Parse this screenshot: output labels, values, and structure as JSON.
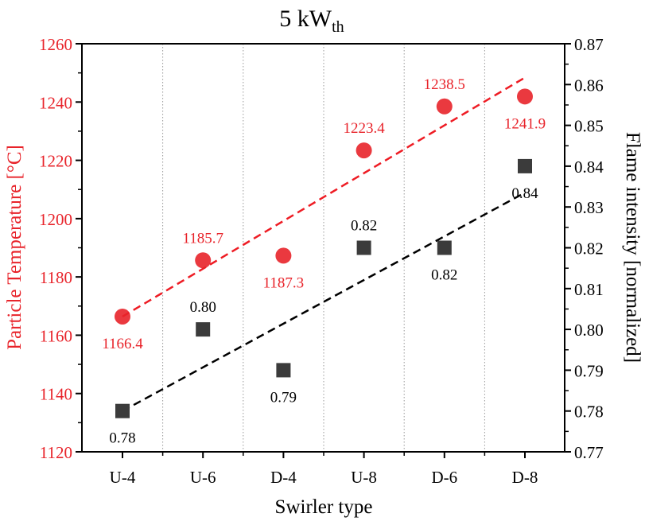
{
  "chart_data": {
    "type": "scatter",
    "title": "5 kW",
    "title_subscript": "th",
    "xlabel": "Swirler type",
    "ylabel_left": "Particle Temperature [°C]",
    "ylabel_right": "Flame intensity [normalized]",
    "categories": [
      "U-4",
      "U-6",
      "D-4",
      "U-8",
      "D-6",
      "D-8"
    ],
    "ylim_left": [
      1120,
      1260
    ],
    "yticks_left": [
      "1120",
      "1140",
      "1160",
      "1180",
      "1200",
      "1220",
      "1240",
      "1260"
    ],
    "ylim_right": [
      0.77,
      0.87
    ],
    "yticks_right": [
      "0.77",
      "0.78",
      "0.79",
      "0.80",
      "0.81",
      "0.82",
      "0.83",
      "0.84",
      "0.85",
      "0.86",
      "0.87"
    ],
    "grid": "vertical-dotted",
    "series": [
      {
        "name": "Particle Temperature",
        "axis": "left",
        "marker": "circle",
        "color": "#e8232a",
        "values": [
          1166.4,
          1185.7,
          1187.3,
          1223.4,
          1238.5,
          1241.9
        ],
        "labels": [
          "1166.4",
          "1185.7",
          "1187.3",
          "1223.4",
          "1238.5",
          "1241.9"
        ],
        "label_side": [
          "below",
          "above",
          "below",
          "above",
          "above",
          "below"
        ],
        "trend": [
          1166.4,
          1248.4
        ]
      },
      {
        "name": "Flame intensity",
        "axis": "right",
        "marker": "square",
        "color": "#3b3b3b",
        "values": [
          0.78,
          0.8,
          0.79,
          0.82,
          0.82,
          0.84
        ],
        "labels": [
          "0.78",
          "0.80",
          "0.79",
          "0.82",
          "0.82",
          "0.84"
        ],
        "label_side": [
          "below",
          "above",
          "below",
          "above",
          "below",
          "below"
        ],
        "trend": [
          0.78,
          0.8335
        ]
      }
    ]
  }
}
